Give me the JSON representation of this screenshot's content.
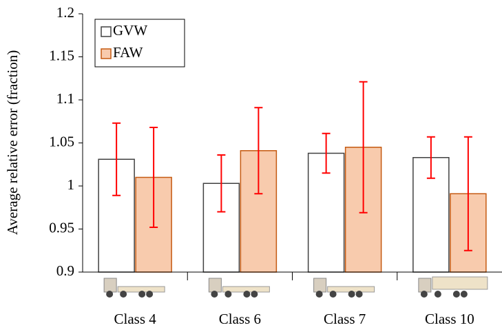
{
  "chart_data": {
    "type": "bar",
    "y_label": "Average relative error (fraction)",
    "categories": [
      "Class 4",
      "Class 6",
      "Class 7",
      "Class 10"
    ],
    "series": [
      {
        "name": "GVW",
        "color": "#ffffff",
        "edge": "#404040",
        "values": [
          1.031,
          1.003,
          1.038,
          1.033
        ],
        "errors": [
          0.042,
          0.033,
          0.023,
          0.024
        ]
      },
      {
        "name": "FAW",
        "color": "#f8cbad",
        "edge": "#c55a11",
        "values": [
          1.01,
          1.041,
          1.045,
          0.991
        ],
        "errors": [
          0.058,
          0.05,
          0.076,
          0.066
        ]
      }
    ],
    "error_color": "#ff0000",
    "ylim": [
      0.9,
      1.2
    ],
    "yticks": [
      0.9,
      0.95,
      1,
      1.05,
      1.1,
      1.15,
      1.2
    ],
    "legend": "upper-left"
  }
}
